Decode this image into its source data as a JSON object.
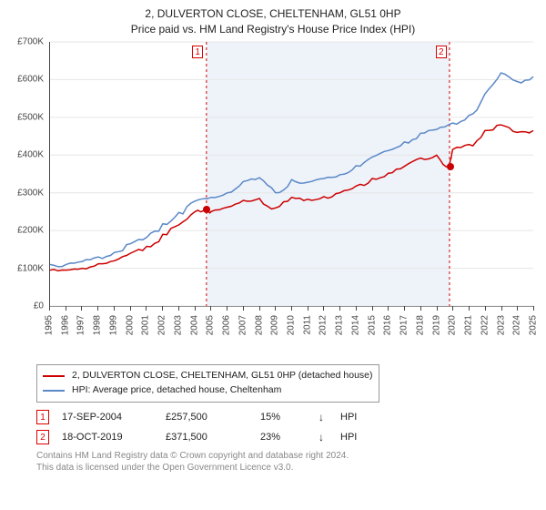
{
  "title_line1": "2, DULVERTON CLOSE, CHELTENHAM, GL51 0HP",
  "title_line2": "Price paid vs. HM Land Registry's House Price Index (HPI)",
  "chart": {
    "type": "line",
    "background_color": "#ffffff",
    "grid_color": "#e6e6e6",
    "axis_color": "#444444",
    "shade_band_color": "#EEF3FA",
    "y": {
      "min": 0,
      "max": 700000,
      "step": 100000,
      "ticks": [
        0,
        100000,
        200000,
        300000,
        400000,
        500000,
        600000,
        700000
      ],
      "labels": [
        "£0",
        "£100K",
        "£200K",
        "£300K",
        "£400K",
        "£500K",
        "£600K",
        "£700K"
      ],
      "label_fontsize": 10,
      "label_color": "#444444"
    },
    "x": {
      "min": 1995,
      "max": 2025,
      "ticks": [
        1995,
        1996,
        1997,
        1998,
        1999,
        2000,
        2001,
        2002,
        2003,
        2004,
        2005,
        2006,
        2007,
        2008,
        2009,
        2010,
        2011,
        2012,
        2013,
        2014,
        2015,
        2016,
        2017,
        2018,
        2019,
        2020,
        2021,
        2022,
        2023,
        2024,
        2025
      ],
      "label_fontsize": 10,
      "label_color": "#444444",
      "rotation": -90
    },
    "series": [
      {
        "name": "price_paid",
        "label": "2, DULVERTON CLOSE, CHELTENHAM, GL51 0HP (detached house)",
        "color": "#cc0000",
        "line_width": 1.5,
        "points": [
          [
            1995,
            95000
          ],
          [
            1996,
            95000
          ],
          [
            1997,
            100000
          ],
          [
            1998,
            112000
          ],
          [
            1999,
            120000
          ],
          [
            2000,
            140000
          ],
          [
            2001,
            158000
          ],
          [
            2002,
            190000
          ],
          [
            2003,
            215000
          ],
          [
            2004,
            250000
          ],
          [
            2004.71,
            257500
          ],
          [
            2005,
            250000
          ],
          [
            2006,
            262000
          ],
          [
            2007,
            280000
          ],
          [
            2008,
            285000
          ],
          [
            2009,
            260000
          ],
          [
            2010,
            288000
          ],
          [
            2011,
            283000
          ],
          [
            2012,
            290000
          ],
          [
            2013,
            300000
          ],
          [
            2014,
            318000
          ],
          [
            2015,
            338000
          ],
          [
            2016,
            352000
          ],
          [
            2017,
            370000
          ],
          [
            2018,
            392000
          ],
          [
            2019,
            400000
          ],
          [
            2019.8,
            371500
          ],
          [
            2020,
            415000
          ],
          [
            2021,
            428000
          ],
          [
            2022,
            465000
          ],
          [
            2023,
            480000
          ],
          [
            2024,
            460000
          ],
          [
            2025,
            465000
          ]
        ]
      },
      {
        "name": "hpi",
        "label": "HPI: Average price, detached house, Cheltenham",
        "color": "#5b88c7",
        "line_width": 1.5,
        "points": [
          [
            1995,
            110000
          ],
          [
            1996,
            110000
          ],
          [
            1997,
            118000
          ],
          [
            1998,
            130000
          ],
          [
            1999,
            142000
          ],
          [
            2000,
            165000
          ],
          [
            2001,
            182000
          ],
          [
            2002,
            218000
          ],
          [
            2003,
            248000
          ],
          [
            2004,
            278000
          ],
          [
            2005,
            288000
          ],
          [
            2006,
            300000
          ],
          [
            2007,
            330000
          ],
          [
            2008,
            340000
          ],
          [
            2009,
            300000
          ],
          [
            2010,
            335000
          ],
          [
            2011,
            328000
          ],
          [
            2012,
            338000
          ],
          [
            2013,
            348000
          ],
          [
            2014,
            372000
          ],
          [
            2015,
            395000
          ],
          [
            2016,
            412000
          ],
          [
            2017,
            435000
          ],
          [
            2018,
            458000
          ],
          [
            2019,
            468000
          ],
          [
            2020,
            485000
          ],
          [
            2021,
            505000
          ],
          [
            2022,
            562000
          ],
          [
            2023,
            618000
          ],
          [
            2024,
            595000
          ],
          [
            2025,
            608000
          ]
        ]
      }
    ],
    "sale_markers": [
      {
        "n": "1",
        "year": 1995,
        "vline_at": 2004.71
      },
      {
        "n": "2",
        "year": 2025,
        "vline_at": 2019.8
      }
    ],
    "vline_color": "#d00000",
    "vline_dash": "3,3",
    "sale_points": [
      {
        "year": 2004.71,
        "value": 257500
      },
      {
        "year": 2019.8,
        "value": 371500
      }
    ]
  },
  "legend": {
    "border_color": "#999999",
    "fontsize": 10.5,
    "items": [
      {
        "color": "#cc0000",
        "label": "2, DULVERTON CLOSE, CHELTENHAM, GL51 0HP (detached house)"
      },
      {
        "color": "#5b88c7",
        "label": "HPI: Average price, detached house, Cheltenham"
      }
    ]
  },
  "sales_table": {
    "fontsize": 11,
    "rows": [
      {
        "n": "1",
        "date": "17-SEP-2004",
        "price": "£257,500",
        "pct": "15%",
        "dir": "↓",
        "hpi": "HPI"
      },
      {
        "n": "2",
        "date": "18-OCT-2019",
        "price": "£371,500",
        "pct": "23%",
        "dir": "↓",
        "hpi": "HPI"
      }
    ]
  },
  "license": {
    "line1": "Contains HM Land Registry data © Crown copyright and database right 2024.",
    "line2": "This data is licensed under the Open Government Licence v3.0.",
    "color": "#888888",
    "fontsize": 10
  }
}
